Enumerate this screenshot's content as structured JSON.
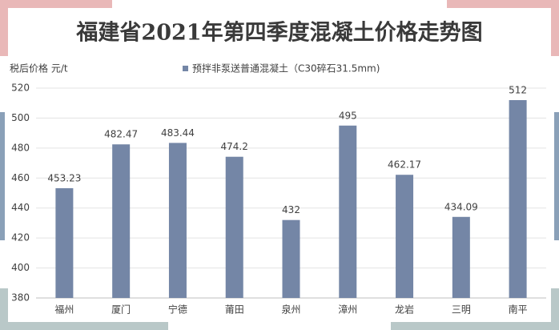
{
  "chart_data": {
    "type": "bar",
    "title": "福建省2021年第四季度混凝土价格走势图",
    "y_label": "税后价格  元/t",
    "categories": [
      "福州",
      "厦门",
      "宁德",
      "莆田",
      "泉州",
      "漳州",
      "龙岩",
      "三明",
      "南平"
    ],
    "series": [
      {
        "name": "预拌非泵送普通混凝土（C30碎石31.5mm)",
        "color": "#7486a6",
        "values": [
          453.23,
          482.47,
          483.44,
          474.2,
          432,
          495,
          462.17,
          434.09,
          512
        ]
      }
    ],
    "ylim": [
      380,
      520
    ],
    "yticks": [
      380,
      400,
      420,
      440,
      460,
      480,
      500,
      520
    ],
    "grid": true
  }
}
